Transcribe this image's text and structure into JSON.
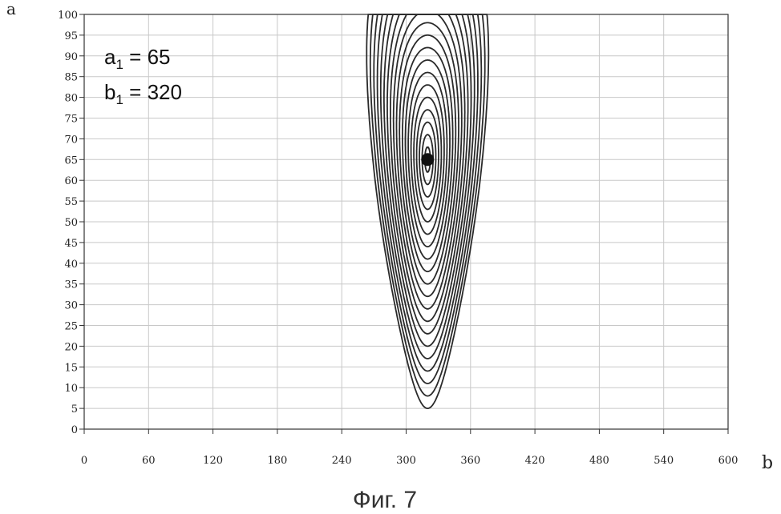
{
  "chart_data": {
    "type": "contour",
    "xlabel": "b",
    "ylabel": "a",
    "xlim": [
      0,
      600
    ],
    "ylim": [
      0,
      100
    ],
    "x_ticks": [
      0,
      60,
      120,
      180,
      240,
      300,
      360,
      420,
      480,
      540,
      600
    ],
    "y_ticks": [
      0,
      5,
      10,
      15,
      20,
      25,
      30,
      35,
      40,
      45,
      50,
      55,
      60,
      65,
      70,
      75,
      80,
      85,
      90,
      95,
      100
    ],
    "grid": true,
    "center": {
      "b": 320,
      "a": 65
    },
    "contour_count": 20,
    "outer_contour_min_a": 5,
    "annotations": {
      "a_sym": "a",
      "b_sym": "b",
      "sub": "1",
      "a_value": " = 65",
      "b_value": " = 320"
    },
    "caption": "Фиг. 7"
  }
}
